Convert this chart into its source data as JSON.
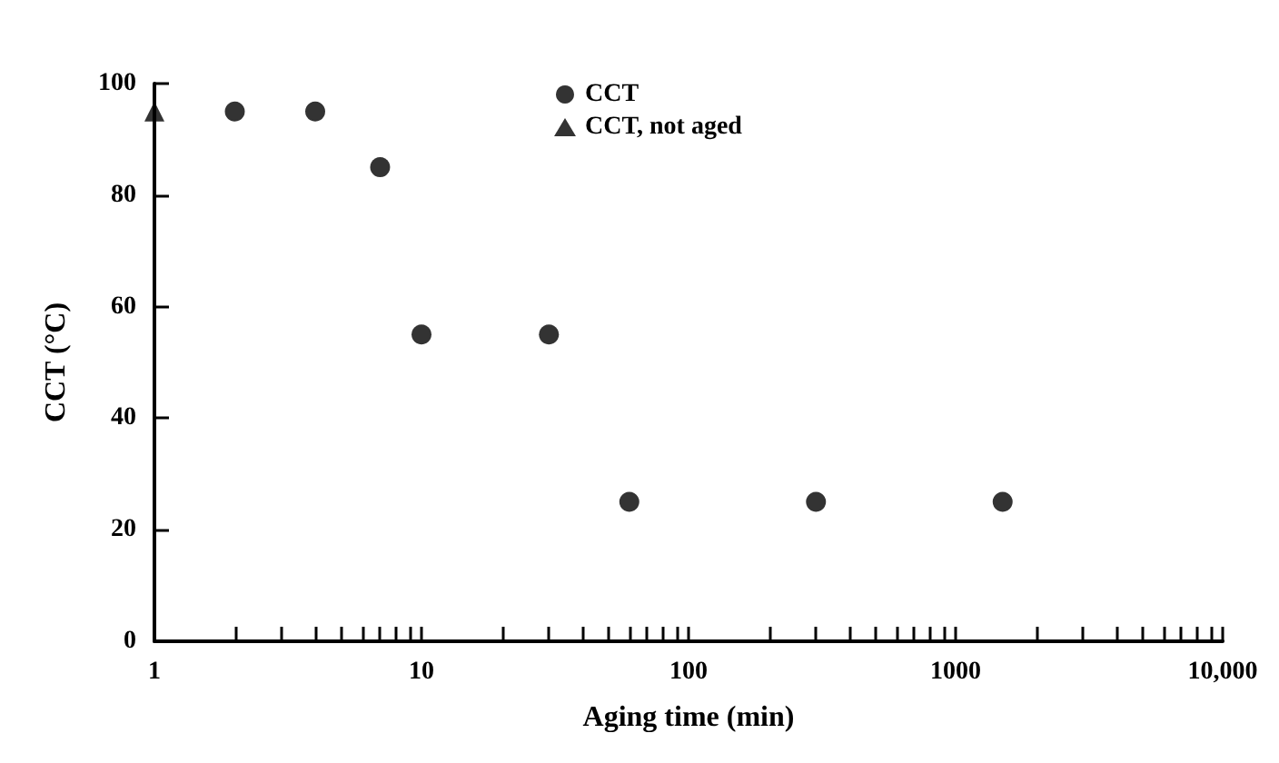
{
  "chart_data": {
    "type": "scatter",
    "xlabel": "Aging time (min)",
    "ylabel": "CCT (°C)",
    "series": [
      {
        "name": "CCT",
        "color": "#000000",
        "marker": "circle",
        "x": [
          2,
          4,
          7,
          10,
          30,
          60,
          300,
          1500
        ],
        "values": [
          95,
          95,
          85,
          55,
          55,
          25,
          25,
          25
        ]
      },
      {
        "name": "CCT, not aged",
        "color": "#000000",
        "marker": "triangle",
        "x": [
          1
        ],
        "values": [
          95
        ]
      }
    ],
    "xlim": [
      1,
      10000
    ],
    "xticks": [
      1,
      {
        "value": 2,
        "label": null
      },
      {
        "value": 3,
        "label": null
      },
      {
        "value": 4,
        "label": null
      },
      {
        "value": 5,
        "label": null
      },
      {
        "value": 6,
        "label": null
      },
      {
        "value": 7,
        "label": null
      },
      {
        "value": 8,
        "label": null
      },
      {
        "value": 9,
        "label": null
      },
      10,
      {
        "value": 20,
        "label": null
      },
      {
        "value": 30,
        "label": null
      },
      {
        "value": 40,
        "label": null
      },
      {
        "value": 50,
        "label": null
      },
      {
        "value": 60,
        "label": null
      },
      {
        "value": 70,
        "label": null
      },
      {
        "value": 80,
        "label": null
      },
      {
        "value": 90,
        "label": null
      },
      100,
      {
        "value": 200,
        "label": null
      },
      {
        "value": 300,
        "label": null
      },
      {
        "value": 400,
        "label": null
      },
      {
        "value": 500,
        "label": null
      },
      {
        "value": 600,
        "label": null
      },
      {
        "value": 700,
        "label": null
      },
      {
        "value": 800,
        "label": null
      },
      {
        "value": 900,
        "label": null
      },
      1000,
      {
        "value": 2000,
        "label": null
      },
      {
        "value": 3000,
        "label": null
      },
      {
        "value": 4000,
        "label": null
      },
      {
        "value": 5000,
        "label": null
      },
      {
        "value": 6000,
        "label": null
      },
      {
        "value": 7000,
        "label": null
      },
      {
        "value": 8000,
        "label": null
      },
      {
        "value": 9000,
        "label": null
      },
      {
        "value": 10000,
        "label": "10,000"
      }
    ],
    "ylim": [
      0,
      100
    ],
    "yticks": [
      0,
      20,
      40,
      60,
      80,
      100
    ],
    "log": "x",
    "grid": false,
    "legend": "top"
  }
}
